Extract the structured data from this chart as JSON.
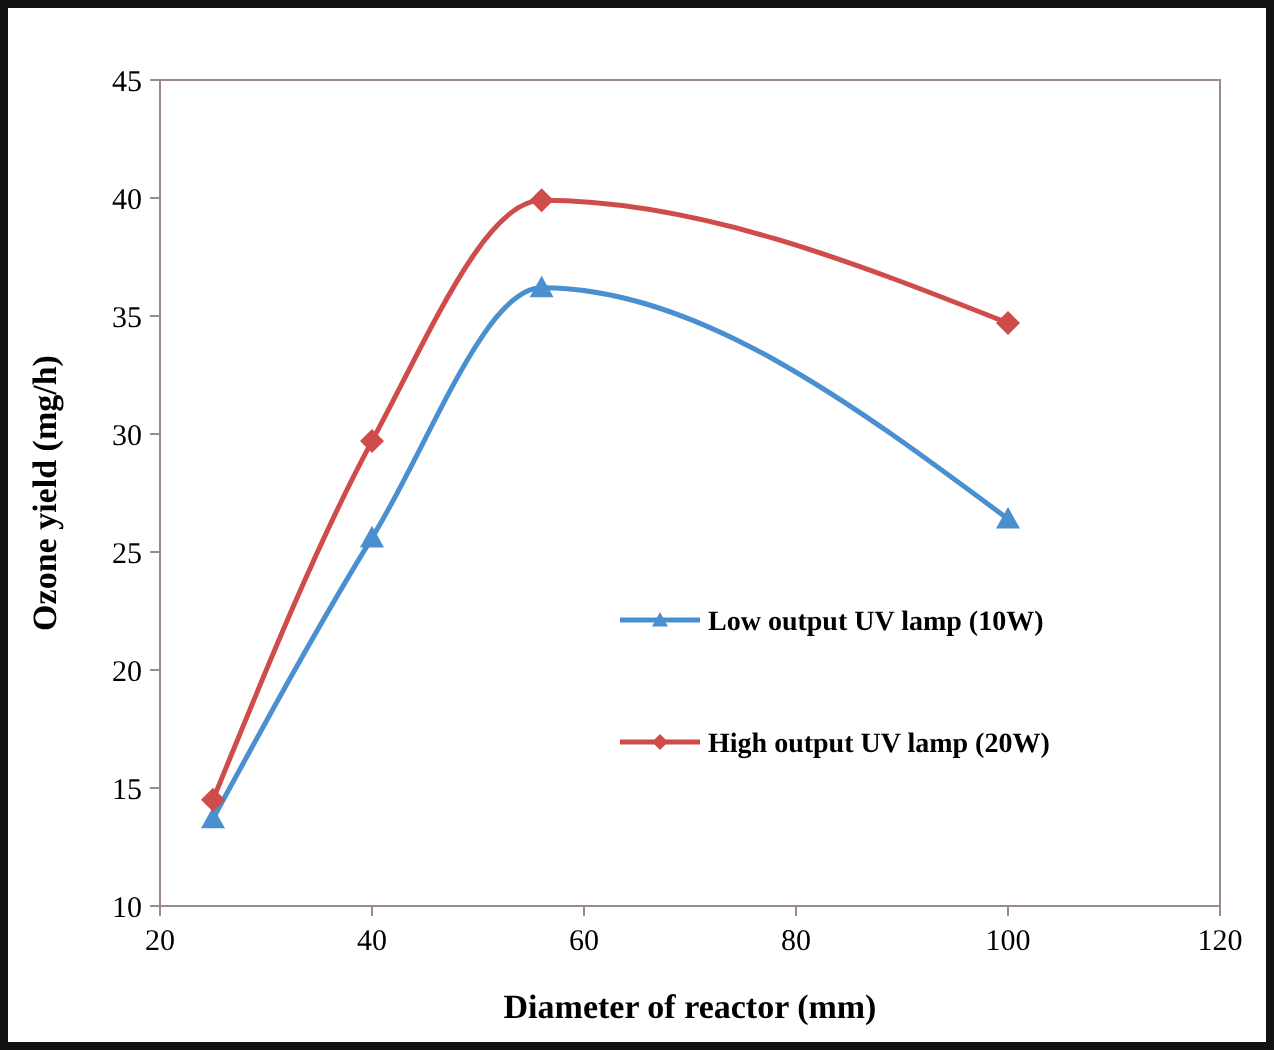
{
  "chart_data": {
    "type": "line",
    "xlabel": "Diameter of reactor (mm)",
    "ylabel": "Ozone yield (mg/h)",
    "x": [
      25,
      40,
      56,
      100
    ],
    "series": [
      {
        "name": "Low output UV lamp (10W)",
        "color": "#4a90d0",
        "marker": "triangle",
        "values": [
          13.7,
          25.6,
          36.2,
          26.4
        ]
      },
      {
        "name": "High output UV lamp (20W)",
        "color": "#d04c4a",
        "marker": "diamond",
        "values": [
          14.5,
          29.7,
          39.9,
          34.7
        ]
      }
    ],
    "xlim": [
      20,
      120
    ],
    "xticks": [
      20,
      40,
      60,
      80,
      100,
      120
    ],
    "ylim": [
      10,
      45
    ],
    "yticks": [
      10,
      15,
      20,
      25,
      30,
      35,
      40,
      45
    ],
    "grid": false,
    "legend": "right"
  }
}
